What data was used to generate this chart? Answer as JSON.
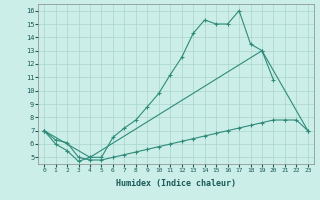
{
  "xlabel": "Humidex (Indice chaleur)",
  "line_color": "#2e8b7a",
  "bg_color": "#cceee8",
  "grid_color": "#aad4cc",
  "ylim": [
    4.5,
    16.5
  ],
  "xlim": [
    -0.5,
    23.5
  ],
  "yticks": [
    5,
    6,
    7,
    8,
    9,
    10,
    11,
    12,
    13,
    14,
    15,
    16
  ],
  "xticks": [
    0,
    1,
    2,
    3,
    4,
    5,
    6,
    7,
    8,
    9,
    10,
    11,
    12,
    13,
    14,
    15,
    16,
    17,
    18,
    19,
    20,
    21,
    22,
    23
  ],
  "line1_x": [
    0,
    1,
    2,
    3,
    4,
    5,
    6,
    7,
    8,
    9,
    10,
    11,
    12,
    13,
    14,
    15,
    16,
    17,
    18,
    19,
    20
  ],
  "line1_y": [
    7.0,
    6.0,
    5.5,
    4.7,
    5.0,
    5.0,
    6.5,
    7.2,
    7.8,
    8.8,
    9.8,
    11.2,
    12.5,
    14.3,
    15.3,
    15.0,
    15.0,
    16.0,
    13.5,
    13.0,
    10.8
  ],
  "line2_x": [
    0,
    4,
    19,
    23
  ],
  "line2_y": [
    7.0,
    5.0,
    13.0,
    7.0
  ],
  "line3_x": [
    0,
    1,
    2,
    3,
    4,
    5,
    6,
    7,
    8,
    9,
    10,
    11,
    12,
    13,
    14,
    15,
    16,
    17,
    18,
    19,
    20,
    21,
    22,
    23
  ],
  "line3_y": [
    7.0,
    6.3,
    6.1,
    5.0,
    4.8,
    4.8,
    5.0,
    5.2,
    5.4,
    5.6,
    5.8,
    6.0,
    6.2,
    6.4,
    6.6,
    6.8,
    7.0,
    7.2,
    7.4,
    7.6,
    7.8,
    7.8,
    7.8,
    7.0
  ]
}
